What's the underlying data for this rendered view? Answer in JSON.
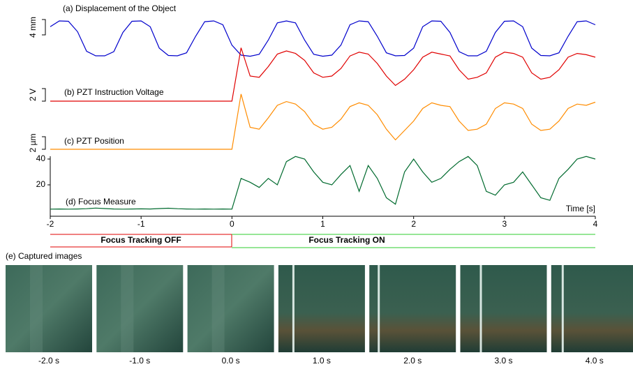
{
  "chart_data": [
    {
      "type": "line",
      "title": "(a) Displacement of the Object",
      "scalebar": {
        "value": 4,
        "label": "4 mm"
      },
      "xlim": [
        -2,
        4
      ],
      "ylim": [
        0,
        12
      ],
      "x": [
        -2.0,
        -1.9,
        -1.8,
        -1.7,
        -1.6,
        -1.5,
        -1.4,
        -1.3,
        -1.2,
        -1.1,
        -1.0,
        -0.9,
        -0.8,
        -0.7,
        -0.6,
        -0.5,
        -0.4,
        -0.3,
        -0.2,
        -0.1,
        0.0,
        0.1,
        0.2,
        0.3,
        0.4,
        0.5,
        0.6,
        0.7,
        0.8,
        0.9,
        1.0,
        1.1,
        1.2,
        1.3,
        1.4,
        1.5,
        1.6,
        1.7,
        1.8,
        1.9,
        2.0,
        2.1,
        2.2,
        2.3,
        2.4,
        2.5,
        2.6,
        2.7,
        2.8,
        2.9,
        3.0,
        3.1,
        3.2,
        3.3,
        3.4,
        3.5,
        3.6,
        3.7,
        3.8,
        3.9,
        4.0
      ],
      "series": [
        {
          "color": "#0000cc",
          "values": [
            8.5,
            10,
            9.9,
            7.2,
            2.1,
            0.9,
            0.9,
            2.0,
            7.0,
            9.9,
            10,
            8.5,
            2.9,
            1.0,
            0.9,
            1.7,
            6.0,
            9.8,
            10,
            9.0,
            3.7,
            1.1,
            0.8,
            1.3,
            5.0,
            9.5,
            10,
            9.5,
            5.0,
            1.3,
            0.8,
            1.1,
            3.7,
            9.0,
            10,
            9.8,
            6.0,
            1.7,
            0.9,
            1.0,
            2.9,
            8.5,
            10,
            9.9,
            7.0,
            2.0,
            0.9,
            0.9,
            2.1,
            7.0,
            9.9,
            10,
            8.5,
            2.9,
            1.0,
            0.9,
            1.7,
            6.0,
            9.8,
            10,
            9.0
          ]
        }
      ]
    },
    {
      "type": "line",
      "title": "(b) PZT Instruction Voltage",
      "scalebar": {
        "value": 2,
        "label": "2 V"
      },
      "xlim": [
        -2,
        4
      ],
      "ylim": [
        0,
        10
      ],
      "x": [
        -2.0,
        -1.9,
        -1.8,
        -1.7,
        -1.6,
        -1.5,
        -1.4,
        -1.3,
        -1.2,
        -1.1,
        -1.0,
        -0.9,
        -0.8,
        -0.7,
        -0.6,
        -0.5,
        -0.4,
        -0.3,
        -0.2,
        -0.1,
        0.0,
        0.1,
        0.2,
        0.3,
        0.4,
        0.5,
        0.6,
        0.7,
        0.8,
        0.9,
        1.0,
        1.1,
        1.2,
        1.3,
        1.4,
        1.5,
        1.6,
        1.7,
        1.8,
        1.9,
        2.0,
        2.1,
        2.2,
        2.3,
        2.4,
        2.5,
        2.6,
        2.7,
        2.8,
        2.9,
        3.0,
        3.1,
        3.2,
        3.3,
        3.4,
        3.5,
        3.6,
        3.7,
        3.8,
        3.9,
        4.0
      ],
      "series": [
        {
          "color": "#e00000",
          "values": [
            0,
            0,
            0,
            0,
            0,
            0,
            0,
            0,
            0,
            0,
            0,
            0,
            0,
            0,
            0,
            0,
            0,
            0,
            0,
            0,
            0,
            8.5,
            4.0,
            3.8,
            5.5,
            7.5,
            8.0,
            7.6,
            6.5,
            4.5,
            3.8,
            4.0,
            5.2,
            7.2,
            7.8,
            7.5,
            6.0,
            4.0,
            2.5,
            3.5,
            5.0,
            7.0,
            7.8,
            7.5,
            7.2,
            5.0,
            3.5,
            3.8,
            4.5,
            7.0,
            7.8,
            7.6,
            7.0,
            4.5,
            3.5,
            3.8,
            5.0,
            7.0,
            7.6,
            7.4,
            7.0
          ]
        }
      ]
    },
    {
      "type": "line",
      "title": "(c) PZT Position",
      "scalebar": {
        "value": 2,
        "label": "2 µm"
      },
      "xlim": [
        -2,
        4
      ],
      "ylim": [
        0,
        10
      ],
      "x": [
        -2.0,
        -1.9,
        -1.8,
        -1.7,
        -1.6,
        -1.5,
        -1.4,
        -1.3,
        -1.2,
        -1.1,
        -1.0,
        -0.9,
        -0.8,
        -0.7,
        -0.6,
        -0.5,
        -0.4,
        -0.3,
        -0.2,
        -0.1,
        0.0,
        0.1,
        0.2,
        0.3,
        0.4,
        0.5,
        0.6,
        0.7,
        0.8,
        0.9,
        1.0,
        1.1,
        1.2,
        1.3,
        1.4,
        1.5,
        1.6,
        1.7,
        1.8,
        1.9,
        2.0,
        2.1,
        2.2,
        2.3,
        2.4,
        2.5,
        2.6,
        2.7,
        2.8,
        2.9,
        3.0,
        3.1,
        3.2,
        3.3,
        3.4,
        3.5,
        3.6,
        3.7,
        3.8,
        3.9,
        4.0
      ],
      "series": [
        {
          "color": "#ff8c00",
          "values": [
            0,
            0,
            0,
            0,
            0,
            0,
            0,
            0,
            0,
            0,
            0,
            0,
            0,
            0,
            0,
            0,
            0,
            0,
            0,
            0,
            0,
            8.8,
            3.5,
            3.2,
            5.0,
            7.0,
            7.6,
            7.2,
            6.0,
            4.0,
            3.2,
            3.5,
            4.8,
            6.8,
            7.4,
            7.0,
            5.5,
            3.2,
            1.5,
            3.0,
            4.5,
            6.5,
            7.4,
            7.0,
            6.8,
            4.5,
            3.0,
            3.2,
            4.0,
            6.5,
            7.4,
            7.2,
            6.5,
            4.0,
            3.0,
            3.2,
            4.5,
            6.5,
            7.2,
            7.0,
            7.5
          ]
        }
      ]
    },
    {
      "type": "line",
      "title": "(d) Focus Measure",
      "xlabel": "Time [s]",
      "xlim": [
        -2,
        4
      ],
      "ylim": [
        0,
        40
      ],
      "yticks": [
        20,
        40
      ],
      "xticks": [
        -2,
        -1,
        0,
        1,
        2,
        3,
        4
      ],
      "x": [
        -2.0,
        -1.9,
        -1.8,
        -1.7,
        -1.6,
        -1.5,
        -1.4,
        -1.3,
        -1.2,
        -1.1,
        -1.0,
        -0.9,
        -0.8,
        -0.7,
        -0.6,
        -0.5,
        -0.4,
        -0.3,
        -0.2,
        -0.1,
        0.0,
        0.1,
        0.2,
        0.3,
        0.4,
        0.5,
        0.6,
        0.7,
        0.8,
        0.9,
        1.0,
        1.1,
        1.2,
        1.3,
        1.4,
        1.5,
        1.6,
        1.7,
        1.8,
        1.9,
        2.0,
        2.1,
        2.2,
        2.3,
        2.4,
        2.5,
        2.6,
        2.7,
        2.8,
        2.9,
        3.0,
        3.1,
        3.2,
        3.3,
        3.4,
        3.5,
        3.6,
        3.7,
        3.8,
        3.9,
        4.0
      ],
      "series": [
        {
          "color": "#006a2e",
          "values": [
            1.2,
            1.3,
            1.2,
            1.3,
            1.5,
            2.0,
            1.6,
            1.3,
            1.2,
            1.3,
            1.4,
            1.3,
            1.6,
            1.9,
            1.5,
            1.3,
            1.2,
            1.3,
            1.2,
            1.3,
            1.2,
            25,
            22,
            18,
            25,
            20,
            38,
            42,
            40,
            30,
            22,
            20,
            28,
            35,
            15,
            35,
            25,
            10,
            5,
            30,
            40,
            30,
            22,
            25,
            32,
            38,
            42,
            35,
            15,
            12,
            20,
            22,
            30,
            20,
            10,
            8,
            25,
            32,
            40,
            42,
            40
          ]
        }
      ]
    }
  ],
  "status": {
    "off": "Focus Tracking OFF",
    "on": "Focus Tracking ON"
  },
  "images": {
    "title": "(e) Captured images",
    "labels": [
      "-2.0 s",
      "-1.0 s",
      "0.0 s",
      "1.0 s",
      "2.0 s",
      "3.0 s",
      "4.0 s"
    ]
  }
}
